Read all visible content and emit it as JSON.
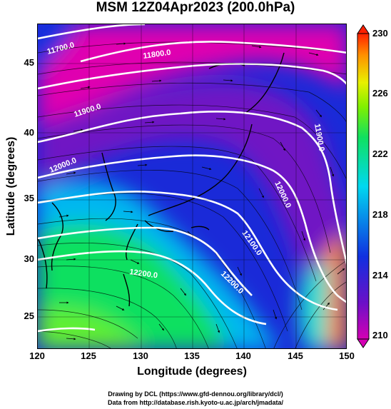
{
  "title": "MSM 12Z04Apr2023 (200.0hPa)",
  "xlabel": "Longitude (degrees)",
  "ylabel": "Latitude  (degrees)",
  "x_ticks": [
    "120",
    "125",
    "130",
    "135",
    "140",
    "145",
    "150"
  ],
  "y_ticks": [
    "45",
    "40",
    "35",
    "30",
    "25"
  ],
  "colorbar": {
    "ticks": [
      "230",
      "226",
      "222",
      "218",
      "214",
      "210"
    ],
    "colors": [
      "#d400b4",
      "#6a10c8",
      "#1030e0",
      "#00d8f0",
      "#10e060",
      "#80f000",
      "#e8f000",
      "#ff9000",
      "#ff2000"
    ]
  },
  "contour_labels": [
    "11700.0",
    "11800.0",
    "11900.0",
    "11900.0",
    "12000.0",
    "12000.0",
    "12100.0",
    "12200.0",
    "12200.0"
  ],
  "footer": {
    "line1": "Drawing by DCL (https://www.gfd-dennou.org/library/dcl/)",
    "line2": "Data from http://database.rish.kyoto-u.ac.jp/arch/jmadata/"
  }
}
